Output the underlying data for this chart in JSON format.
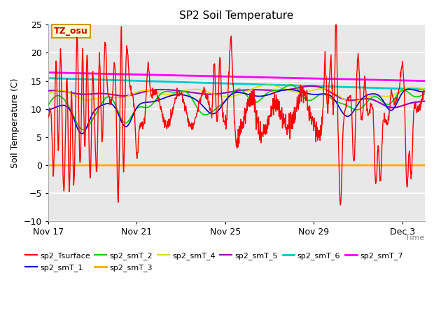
{
  "title": "SP2 Soil Temperature",
  "ylabel": "Soil Temperature (C)",
  "xlabel": "Time",
  "ylim": [
    -10,
    25
  ],
  "background_color": "#ffffff",
  "plot_bg_color": "#e8e8e8",
  "annotation_text": "TZ_osu",
  "annotation_bg": "#ffffcc",
  "annotation_border": "#cc9900",
  "annotation_text_color": "#cc0000",
  "x_ticks_labels": [
    "Nov 17",
    "Nov 21",
    "Nov 25",
    "Nov 29",
    "Dec 3"
  ],
  "x_ticks_positions": [
    0,
    4,
    8,
    12,
    16
  ],
  "series_order": [
    "sp2_Tsurface",
    "sp2_smT_1",
    "sp2_smT_2",
    "sp2_smT_3",
    "sp2_smT_4",
    "sp2_smT_5",
    "sp2_smT_6",
    "sp2_smT_7"
  ],
  "series": {
    "sp2_Tsurface": {
      "color": "#ff0000",
      "lw": 1.0
    },
    "sp2_smT_1": {
      "color": "#0000cc",
      "lw": 1.2
    },
    "sp2_smT_2": {
      "color": "#00cc00",
      "lw": 1.2
    },
    "sp2_smT_3": {
      "color": "#ffaa00",
      "lw": 2.0
    },
    "sp2_smT_4": {
      "color": "#dddd00",
      "lw": 1.2
    },
    "sp2_smT_5": {
      "color": "#9900bb",
      "lw": 1.5
    },
    "sp2_smT_6": {
      "color": "#00cccc",
      "lw": 2.0
    },
    "sp2_smT_7": {
      "color": "#ff00ff",
      "lw": 2.0
    }
  },
  "legend_order": [
    "sp2_Tsurface",
    "sp2_smT_1",
    "sp2_smT_2",
    "sp2_smT_3",
    "sp2_smT_4",
    "sp2_smT_5",
    "sp2_smT_6",
    "sp2_smT_7"
  ]
}
